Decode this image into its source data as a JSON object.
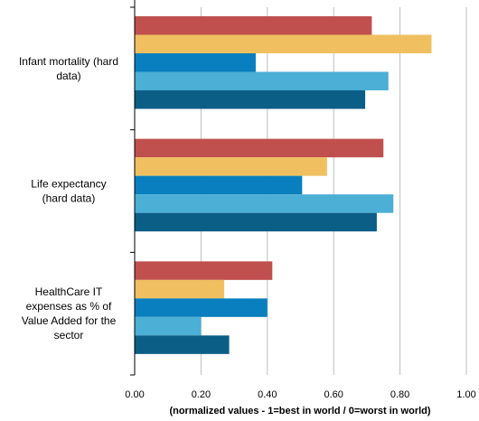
{
  "chart_data": {
    "type": "bar",
    "orientation": "horizontal",
    "categories": [
      [
        "Infant mortality (hard",
        "data)"
      ],
      [
        "Life expectancy",
        "(hard data)"
      ],
      [
        "HealthCare  IT",
        "expenses as % of",
        "Value Added for the",
        "sector"
      ]
    ],
    "series_colors": [
      "#c0504d",
      "#f0c060",
      "#0a7fbf",
      "#4bafd6",
      "#0b5e86"
    ],
    "values": [
      [
        0.715,
        0.895,
        0.365,
        0.765,
        0.695
      ],
      [
        0.75,
        0.58,
        0.505,
        0.78,
        0.73
      ],
      [
        0.415,
        0.27,
        0.4,
        0.2,
        0.285
      ]
    ],
    "xlim": [
      0,
      1
    ],
    "xticks": [
      "0.00",
      "0.20",
      "0.40",
      "0.60",
      "0.80",
      "1.00"
    ],
    "xlabel": "(normalized values - 1=best in world / 0=worst in world)",
    "grid": true
  }
}
